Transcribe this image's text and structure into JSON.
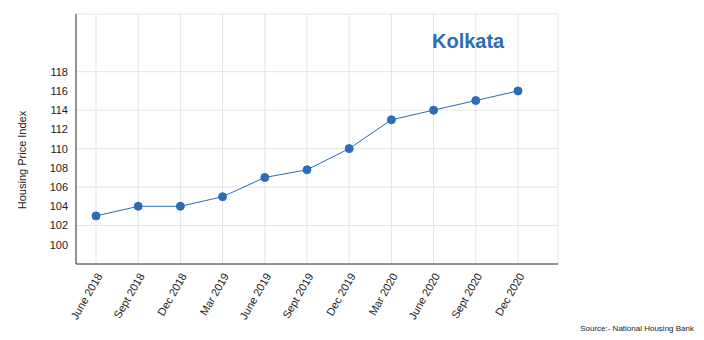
{
  "chart_data": {
    "type": "line",
    "title": "Kolkata",
    "y_label": "Housing Price Index",
    "source": "Source:- National Housing Bank",
    "categories": [
      "June 2018",
      "Sept 2018",
      "Dec 2018",
      "Mar 2019",
      "June 2019",
      "Sept 2019",
      "Dec 2019",
      "Mar 2020",
      "June 2020",
      "Sept 2020",
      "Dec 2020"
    ],
    "values": [
      103,
      104,
      104,
      105,
      107,
      107.8,
      110,
      113,
      114,
      115,
      116
    ],
    "color": "#2a6db5",
    "marker": "circle",
    "line_style": "solid",
    "ylim": [
      98,
      124
    ],
    "yticks": [
      100,
      102,
      104,
      106,
      108,
      110,
      112,
      114,
      116,
      118
    ],
    "grid": true
  }
}
